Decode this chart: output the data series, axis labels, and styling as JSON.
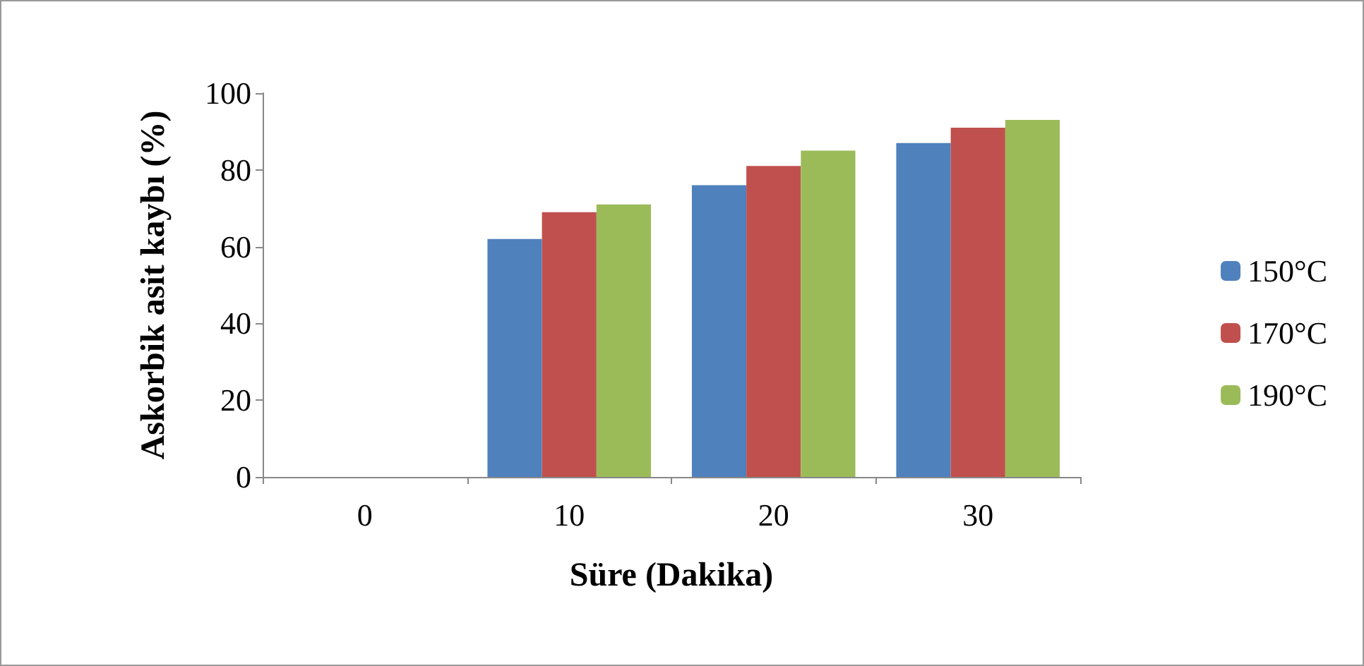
{
  "chart_data": {
    "type": "bar",
    "xlabel": "Süre (Dakika)",
    "ylabel": "Askorbik asit kaybı (%)",
    "categories": [
      "0",
      "10",
      "20",
      "30"
    ],
    "series": [
      {
        "name": "150°C",
        "color": "#4f81bd",
        "values": [
          0,
          62,
          76,
          87
        ]
      },
      {
        "name": "170°C",
        "color": "#c0504d",
        "values": [
          0,
          69,
          81,
          91
        ]
      },
      {
        "name": "190°C",
        "color": "#9bbb59",
        "values": [
          0,
          71,
          85,
          93
        ]
      }
    ],
    "ylim": [
      0,
      100
    ],
    "yticks": [
      0,
      20,
      40,
      60,
      80,
      100
    ],
    "grid": false,
    "legend": "right"
  }
}
